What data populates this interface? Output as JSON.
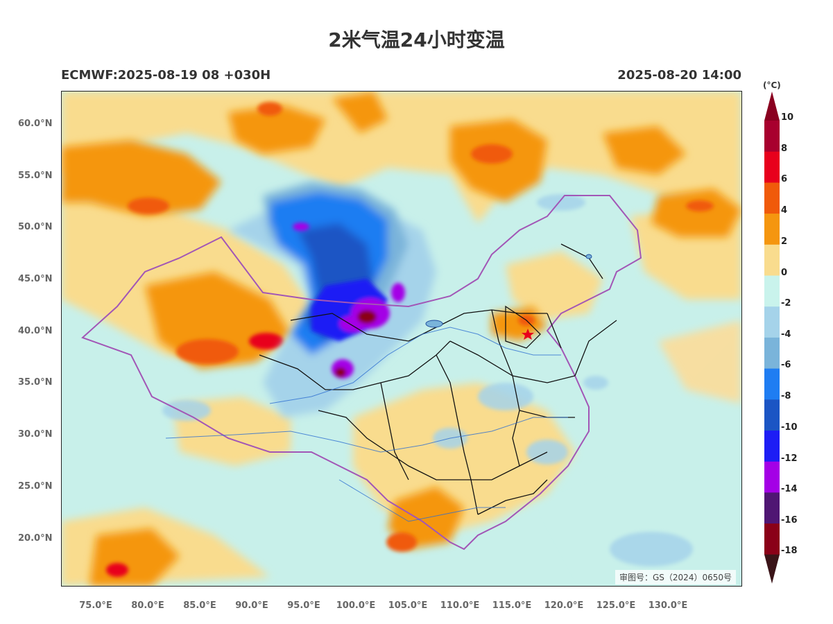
{
  "header": {
    "title": "2米气温24小时变温",
    "model_run": "ECMWF:2025-08-19 08 +030H",
    "valid_time": "2025-08-20 14:00"
  },
  "map": {
    "review_number": "审图号：GS（2024）0650号",
    "lat_labels": [
      "60.0°N",
      "55.0°N",
      "50.0°N",
      "45.0°N",
      "40.0°N",
      "35.0°N",
      "30.0°N",
      "25.0°N",
      "20.0°N"
    ],
    "lon_labels": [
      "75.0°E",
      "80.0°E",
      "85.0°E",
      "90.0°E",
      "95.0°E",
      "100.0°E",
      "105.0°E",
      "110.0°E",
      "115.0°E",
      "120.0°E",
      "125.0°E",
      "130.0°E"
    ],
    "beijing_marker": "star-icon"
  },
  "colorbar": {
    "unit": "(°C)",
    "labels": [
      "10",
      "8",
      "6",
      "4",
      "2",
      "0",
      "-2",
      "-4",
      "-6",
      "-8",
      "-10",
      "-12",
      "-14",
      "-16",
      "-18"
    ],
    "colors": [
      "#a8002e",
      "#e8001c",
      "#f05a0a",
      "#f5960f",
      "#f9dc8e",
      "#c9f3ec",
      "#a5d3ea",
      "#7ab4da",
      "#1f7df2",
      "#1b55c4",
      "#1d1df5",
      "#a400e6",
      "#4f1673",
      "#8a0018"
    ],
    "top_arrow_color": "#8a0020",
    "bottom_arrow_color": "#3a1418"
  }
}
